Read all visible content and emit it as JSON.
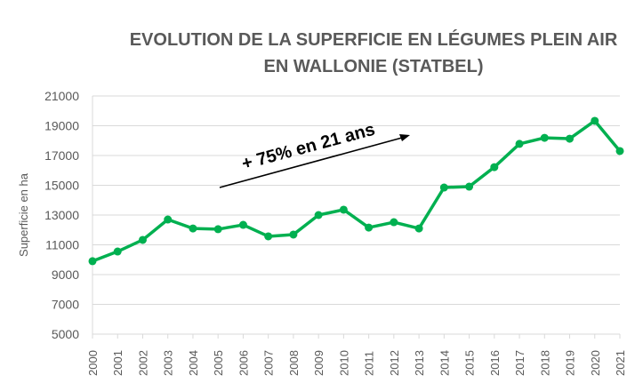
{
  "chart_data": {
    "type": "line",
    "title_line1": "EVOLUTION DE LA SUPERFICIE EN LÉGUMES PLEIN AIR",
    "title_line2": "EN WALLONIE (STATBEL)",
    "xlabel": "",
    "ylabel": "Superficie en ha",
    "ylim": [
      5000,
      21000
    ],
    "yticks": [
      5000,
      7000,
      9000,
      11000,
      13000,
      15000,
      17000,
      19000,
      21000
    ],
    "grid": true,
    "categories": [
      "2000",
      "2001",
      "2002",
      "2003",
      "2004",
      "2005",
      "2006",
      "2007",
      "2008",
      "2009",
      "2010",
      "2011",
      "2012",
      "2013",
      "2014",
      "2015",
      "2016",
      "2017",
      "2018",
      "2019",
      "2020",
      "2021"
    ],
    "values": [
      9900,
      10550,
      11330,
      12700,
      12100,
      12050,
      12340,
      11570,
      11690,
      13000,
      13360,
      12160,
      12520,
      12100,
      14850,
      14910,
      16220,
      17780,
      18190,
      18130,
      19330,
      17300
    ],
    "line_color": "#00B050",
    "annotation": "+ 75% en 21 ans"
  }
}
